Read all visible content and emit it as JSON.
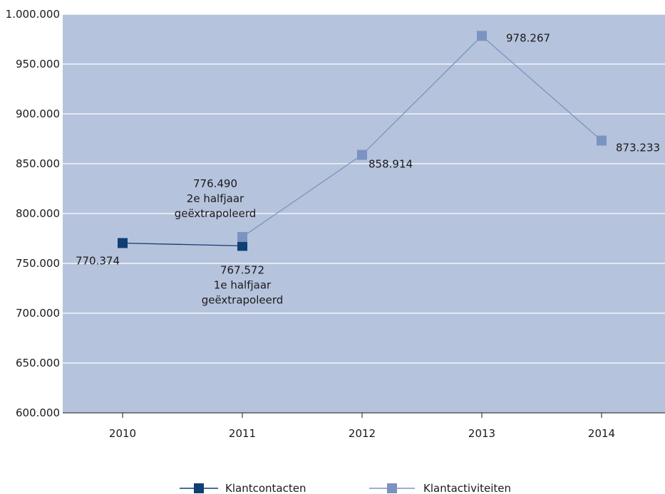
{
  "chart_data": {
    "type": "line",
    "categories": [
      "2010",
      "2011",
      "2012",
      "2013",
      "2014"
    ],
    "ylim": [
      600000,
      1000000
    ],
    "ytick_values": [
      600000,
      650000,
      700000,
      750000,
      800000,
      850000,
      900000,
      950000,
      1000000
    ],
    "ytick_labels": [
      "600.000",
      "650.000",
      "700.000",
      "750.000",
      "800.000",
      "850.000",
      "900.000",
      "950.000",
      "1.000.000"
    ],
    "grid": true,
    "legend_position": "bottom",
    "series": [
      {
        "name": "Klantcontacten",
        "color": "#0f3f73",
        "points": [
          {
            "x": "2010",
            "y": 770374,
            "label": "770.374"
          },
          {
            "x": "2011",
            "y": 767572,
            "label": "767.572",
            "note": [
              "1e halfjaar",
              "geëxtrapoleerd"
            ]
          }
        ]
      },
      {
        "name": "Klantactiviteiten",
        "color": "#7b93c0",
        "points": [
          {
            "x": "2011",
            "y": 776490,
            "label": "776.490",
            "note": [
              "2e halfjaar",
              "geëxtrapoleerd"
            ]
          },
          {
            "x": "2012",
            "y": 858914,
            "label": "858.914"
          },
          {
            "x": "2013",
            "y": 978267,
            "label": "978.267"
          },
          {
            "x": "2014",
            "y": 873233,
            "label": "873.233"
          }
        ]
      }
    ]
  },
  "colors": {
    "plot_background": "#b6c3dd",
    "gridline": "#ffffff",
    "axis": "#1a1a1a"
  }
}
